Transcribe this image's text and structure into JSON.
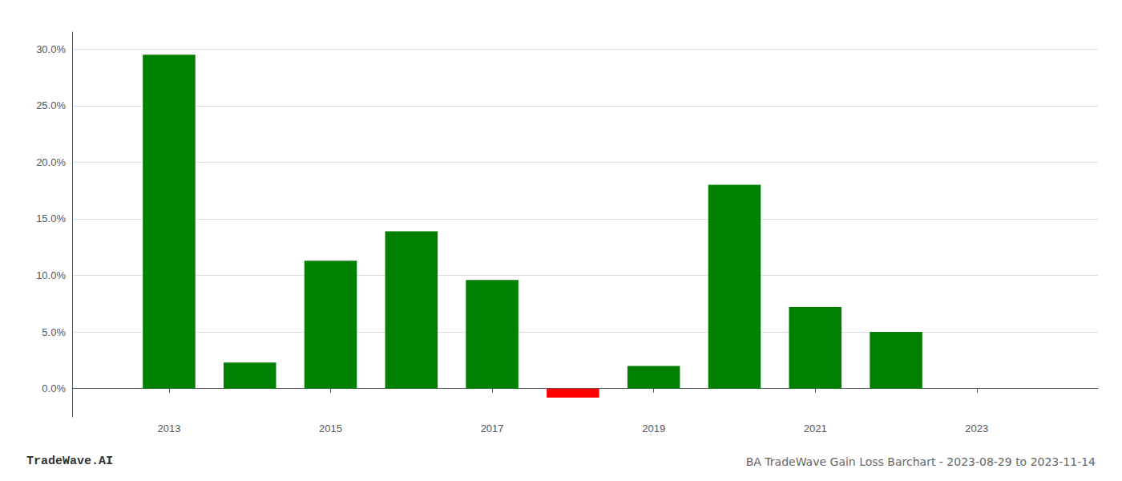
{
  "chart_data": {
    "type": "bar",
    "title": "BA TradeWave Gain Loss Barchart - 2023-08-29 to 2023-11-14",
    "annotations": [
      "TradeWave.AI"
    ],
    "x": [
      2013,
      2014,
      2015,
      2016,
      2017,
      2018,
      2019,
      2020,
      2021,
      2022
    ],
    "values": [
      0.295,
      0.023,
      0.113,
      0.139,
      0.096,
      -0.008,
      0.02,
      0.18,
      0.072,
      0.05
    ],
    "colors": [
      "#008000",
      "#008000",
      "#008000",
      "#008000",
      "#008000",
      "#ff0000",
      "#008000",
      "#008000",
      "#008000",
      "#008000"
    ],
    "xlim": [
      2011.8,
      2024.5
    ],
    "xticks": [
      2013,
      2015,
      2017,
      2019,
      2021,
      2023
    ],
    "ylim": [
      -0.025,
      0.315
    ],
    "yticks": [
      {
        "value": 0.0,
        "label": "0.0%"
      },
      {
        "value": 0.05,
        "label": "5.0%"
      },
      {
        "value": 0.1,
        "label": "10.0%"
      },
      {
        "value": 0.15,
        "label": "15.0%"
      },
      {
        "value": 0.2,
        "label": "20.0%"
      },
      {
        "value": 0.25,
        "label": "25.0%"
      },
      {
        "value": 0.3,
        "label": "30.0%"
      }
    ],
    "grid": true
  }
}
